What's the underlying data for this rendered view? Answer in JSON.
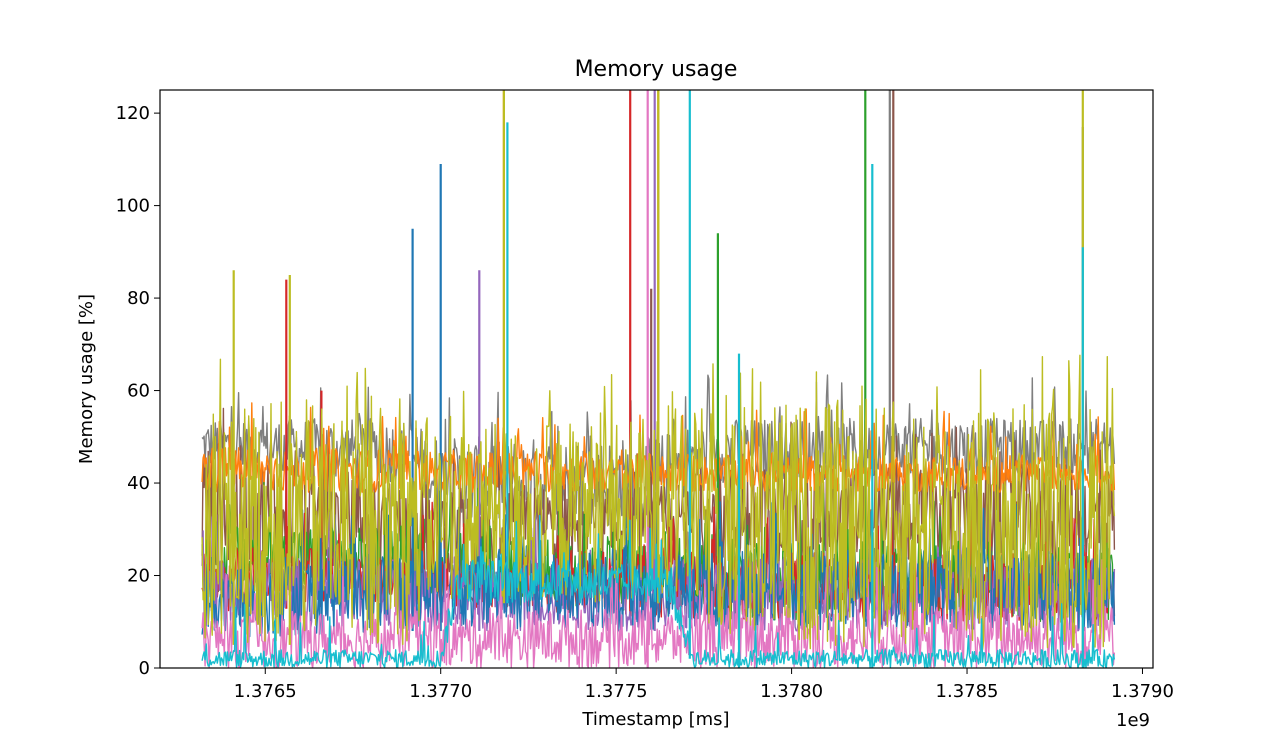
{
  "chart_data": {
    "type": "line",
    "title": "Memory usage",
    "xlabel": "Timestamp [ms]",
    "ylabel": "Memory usage [%]",
    "x_offset_label": "1e9",
    "xlim": [
      1.3762,
      1.37903
    ],
    "ylim": [
      0,
      125
    ],
    "x_ticks": [
      1.3765,
      1.377,
      1.3775,
      1.378,
      1.3785,
      1.379
    ],
    "x_tick_labels": [
      "1.3765",
      "1.3770",
      "1.3775",
      "1.3780",
      "1.3785",
      "1.3790"
    ],
    "y_ticks": [
      0,
      20,
      40,
      60,
      80,
      100,
      120
    ],
    "y_tick_labels": [
      "0",
      "20",
      "40",
      "60",
      "80",
      "100",
      "120"
    ],
    "grid": false,
    "legend": false,
    "data_x_range": [
      1.37632,
      1.37892
    ],
    "colors": [
      "#1f77b4",
      "#ff7f0e",
      "#2ca02c",
      "#d62728",
      "#9467bd",
      "#8c564b",
      "#e377c2",
      "#7f7f7f",
      "#bcbd22",
      "#17becf"
    ],
    "series": [
      {
        "color": "#7f7f7f",
        "band": [
          [
            1.37632,
            42,
            54
          ],
          [
            1.3769,
            40,
            54
          ],
          [
            1.377,
            30,
            50
          ],
          [
            1.3776,
            30,
            50
          ],
          [
            1.37775,
            40,
            54
          ],
          [
            1.37892,
            42,
            54
          ]
        ],
        "spikes": [
          [
            1.37828,
            125
          ],
          [
            1.37883,
            117
          ]
        ]
      },
      {
        "color": "#8c564b",
        "band": [
          [
            1.37632,
            20,
            50
          ],
          [
            1.3769,
            20,
            40
          ],
          [
            1.3777,
            20,
            40
          ],
          [
            1.3778,
            22,
            44
          ],
          [
            1.37892,
            22,
            44
          ]
        ],
        "spikes": [
          [
            1.3776,
            82
          ],
          [
            1.37829,
            125
          ]
        ]
      },
      {
        "color": "#ff7f0e",
        "band": [
          [
            1.37632,
            38,
            48
          ],
          [
            1.3778,
            38,
            46
          ],
          [
            1.37892,
            38,
            46
          ]
        ],
        "spikes": [
          [
            1.37718,
            125
          ],
          [
            1.37762,
            125
          ]
        ]
      },
      {
        "color": "#2ca02c",
        "band": [
          [
            1.37632,
            15,
            32
          ],
          [
            1.3769,
            15,
            30
          ],
          [
            1.3778,
            10,
            28
          ],
          [
            1.37892,
            10,
            28
          ]
        ],
        "spikes": [
          [
            1.37779,
            94
          ],
          [
            1.37821,
            125
          ]
        ]
      },
      {
        "color": "#d62728",
        "band": [
          [
            1.37632,
            12,
            26
          ],
          [
            1.3769,
            14,
            26
          ],
          [
            1.3778,
            10,
            25
          ],
          [
            1.37892,
            10,
            25
          ]
        ],
        "spikes": [
          [
            1.37656,
            84
          ],
          [
            1.37754,
            125
          ],
          [
            1.37666,
            60
          ]
        ]
      },
      {
        "color": "#9467bd",
        "band": [
          [
            1.37632,
            8,
            24
          ],
          [
            1.37892,
            8,
            24
          ]
        ],
        "spikes": [
          [
            1.37711,
            86
          ],
          [
            1.37761,
            125
          ]
        ]
      },
      {
        "color": "#1f77b4",
        "band": [
          [
            1.37632,
            6,
            24
          ],
          [
            1.3769,
            8,
            26
          ],
          [
            1.3778,
            8,
            26
          ],
          [
            1.37892,
            8,
            26
          ]
        ],
        "spikes": [
          [
            1.37692,
            95
          ],
          [
            1.377,
            109
          ]
        ]
      },
      {
        "color": "#e377c2",
        "band": [
          [
            1.37632,
            0,
            12
          ],
          [
            1.37892,
            0,
            14
          ]
        ],
        "spikes": [
          [
            1.37759,
            125
          ]
        ]
      },
      {
        "color": "#bcbd22",
        "band": [
          [
            1.37632,
            5,
            58
          ],
          [
            1.3769,
            5,
            58
          ],
          [
            1.377,
            14,
            52
          ],
          [
            1.3777,
            14,
            55
          ],
          [
            1.3778,
            4,
            58
          ],
          [
            1.37892,
            4,
            58
          ]
        ],
        "spikes": [
          [
            1.37641,
            86
          ],
          [
            1.37657,
            85
          ],
          [
            1.37718,
            125
          ],
          [
            1.37762,
            125
          ],
          [
            1.37883,
            125
          ]
        ]
      },
      {
        "color": "#17becf",
        "band": [
          [
            1.37632,
            0,
            4
          ],
          [
            1.377,
            0,
            4
          ],
          [
            1.37705,
            14,
            24
          ],
          [
            1.37765,
            14,
            22
          ],
          [
            1.37772,
            0,
            4
          ],
          [
            1.37892,
            0,
            4
          ]
        ],
        "spikes": [
          [
            1.37719,
            118
          ],
          [
            1.37771,
            125
          ],
          [
            1.37823,
            109
          ],
          [
            1.37883,
            91
          ],
          [
            1.37785,
            68
          ]
        ]
      }
    ]
  }
}
